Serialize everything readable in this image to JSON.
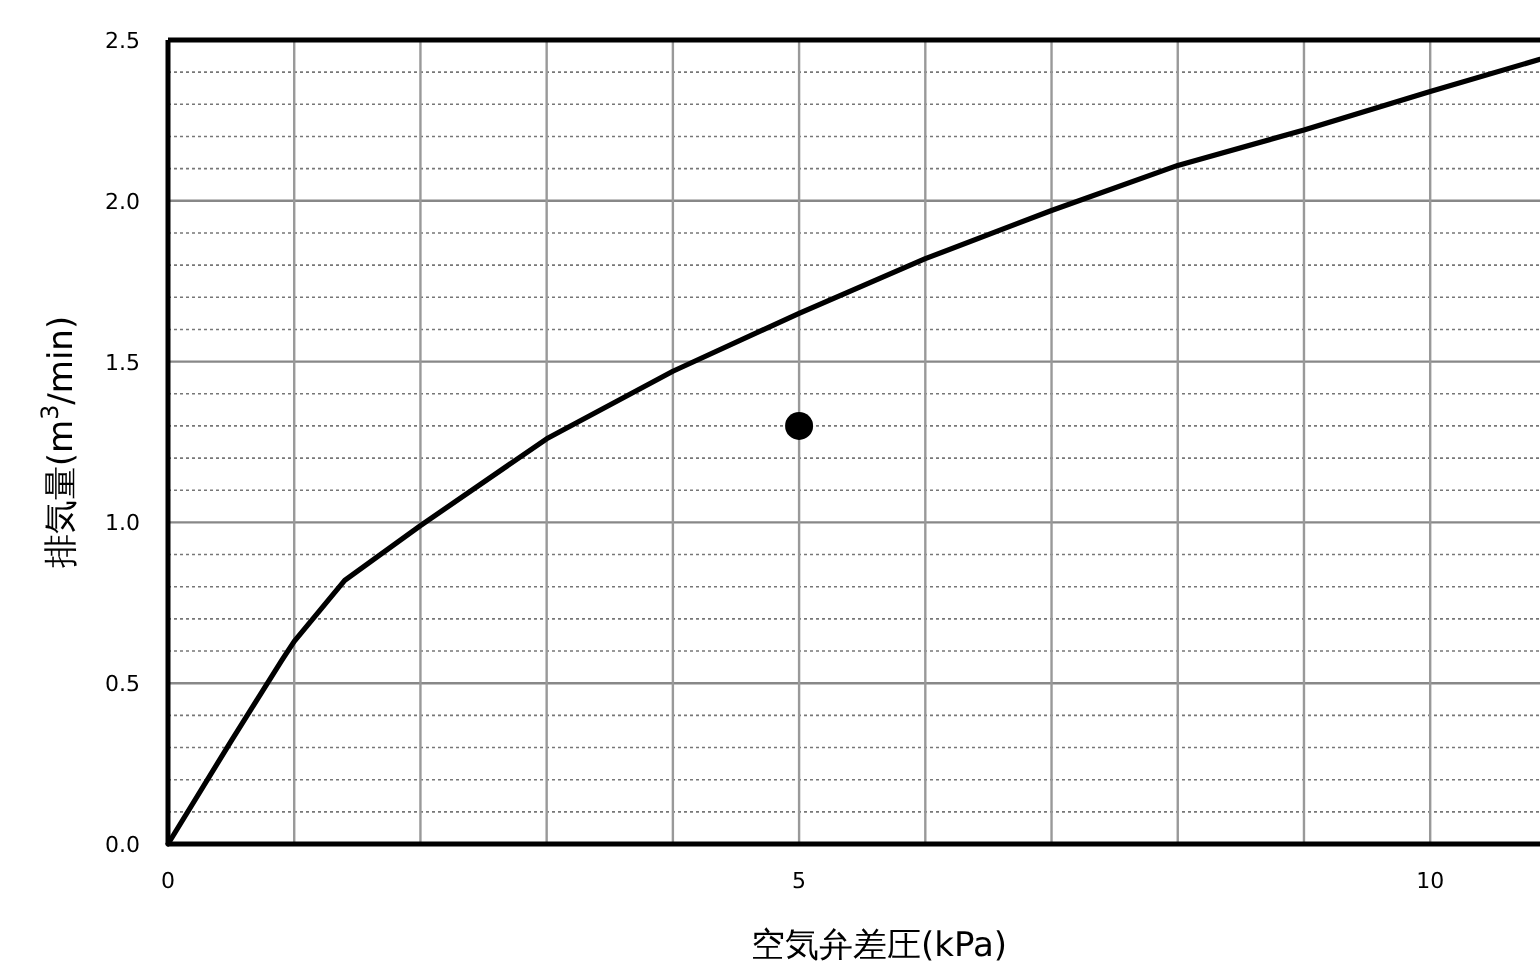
{
  "chart_data": {
    "type": "line",
    "xlabel": "空気弁差圧(kPa)",
    "ylabel": "排気量(m$^{3}$/min)",
    "xlim": [
      0,
      10.87
    ],
    "ylim": [
      0,
      2.5
    ],
    "xticks": [
      0,
      {
        "value": 1,
        "label": null
      },
      {
        "value": 2,
        "label": null
      },
      {
        "value": 3,
        "label": null
      },
      {
        "value": 4,
        "label": null
      },
      5,
      {
        "value": 6,
        "label": null
      },
      {
        "value": 7,
        "label": null
      },
      {
        "value": 8,
        "label": null
      },
      {
        "value": 9,
        "label": null
      },
      10
    ],
    "yticks": [
      {
        "value": 0,
        "label": "0.0"
      },
      {
        "value": 0.1,
        "label": null
      },
      {
        "value": 0.2,
        "label": null
      },
      {
        "value": 0.3,
        "label": null
      },
      {
        "value": 0.4,
        "label": null
      },
      0.5,
      {
        "value": 0.6,
        "label": null
      },
      {
        "value": 0.7,
        "label": null
      },
      {
        "value": 0.8,
        "label": null
      },
      {
        "value": 0.9,
        "label": null
      },
      {
        "value": 1,
        "label": "1.0"
      },
      {
        "value": 1.1,
        "label": null
      },
      {
        "value": 1.2,
        "label": null
      },
      {
        "value": 1.3,
        "label": null
      },
      {
        "value": 1.4,
        "label": null
      },
      1.5,
      {
        "value": 1.6,
        "label": null
      },
      {
        "value": 1.7,
        "label": null
      },
      {
        "value": 1.8,
        "label": null
      },
      {
        "value": 1.9,
        "label": null
      },
      {
        "value": 2,
        "label": "2.0"
      },
      {
        "value": 2.1,
        "label": null
      },
      {
        "value": 2.2,
        "label": null
      },
      {
        "value": 2.3,
        "label": null
      },
      {
        "value": 2.4,
        "label": null
      },
      2.5
    ],
    "grid": true,
    "series": [
      {
        "type": "line",
        "color": "#000000",
        "marker": "none",
        "line_style": "solid",
        "x": [
          0,
          0.5,
          0.9,
          1.0,
          1.4,
          2,
          3,
          4,
          5,
          6,
          7,
          8,
          9,
          10,
          10.87
        ],
        "values": [
          0,
          0.32,
          0.57,
          0.63,
          0.82,
          0.99,
          1.26,
          1.47,
          1.65,
          1.82,
          1.97,
          2.11,
          2.22,
          2.34,
          2.44
        ]
      },
      {
        "type": "scatter",
        "color": "#000000",
        "marker": "circle",
        "x": [
          5
        ],
        "values": [
          1.3
        ]
      }
    ]
  }
}
